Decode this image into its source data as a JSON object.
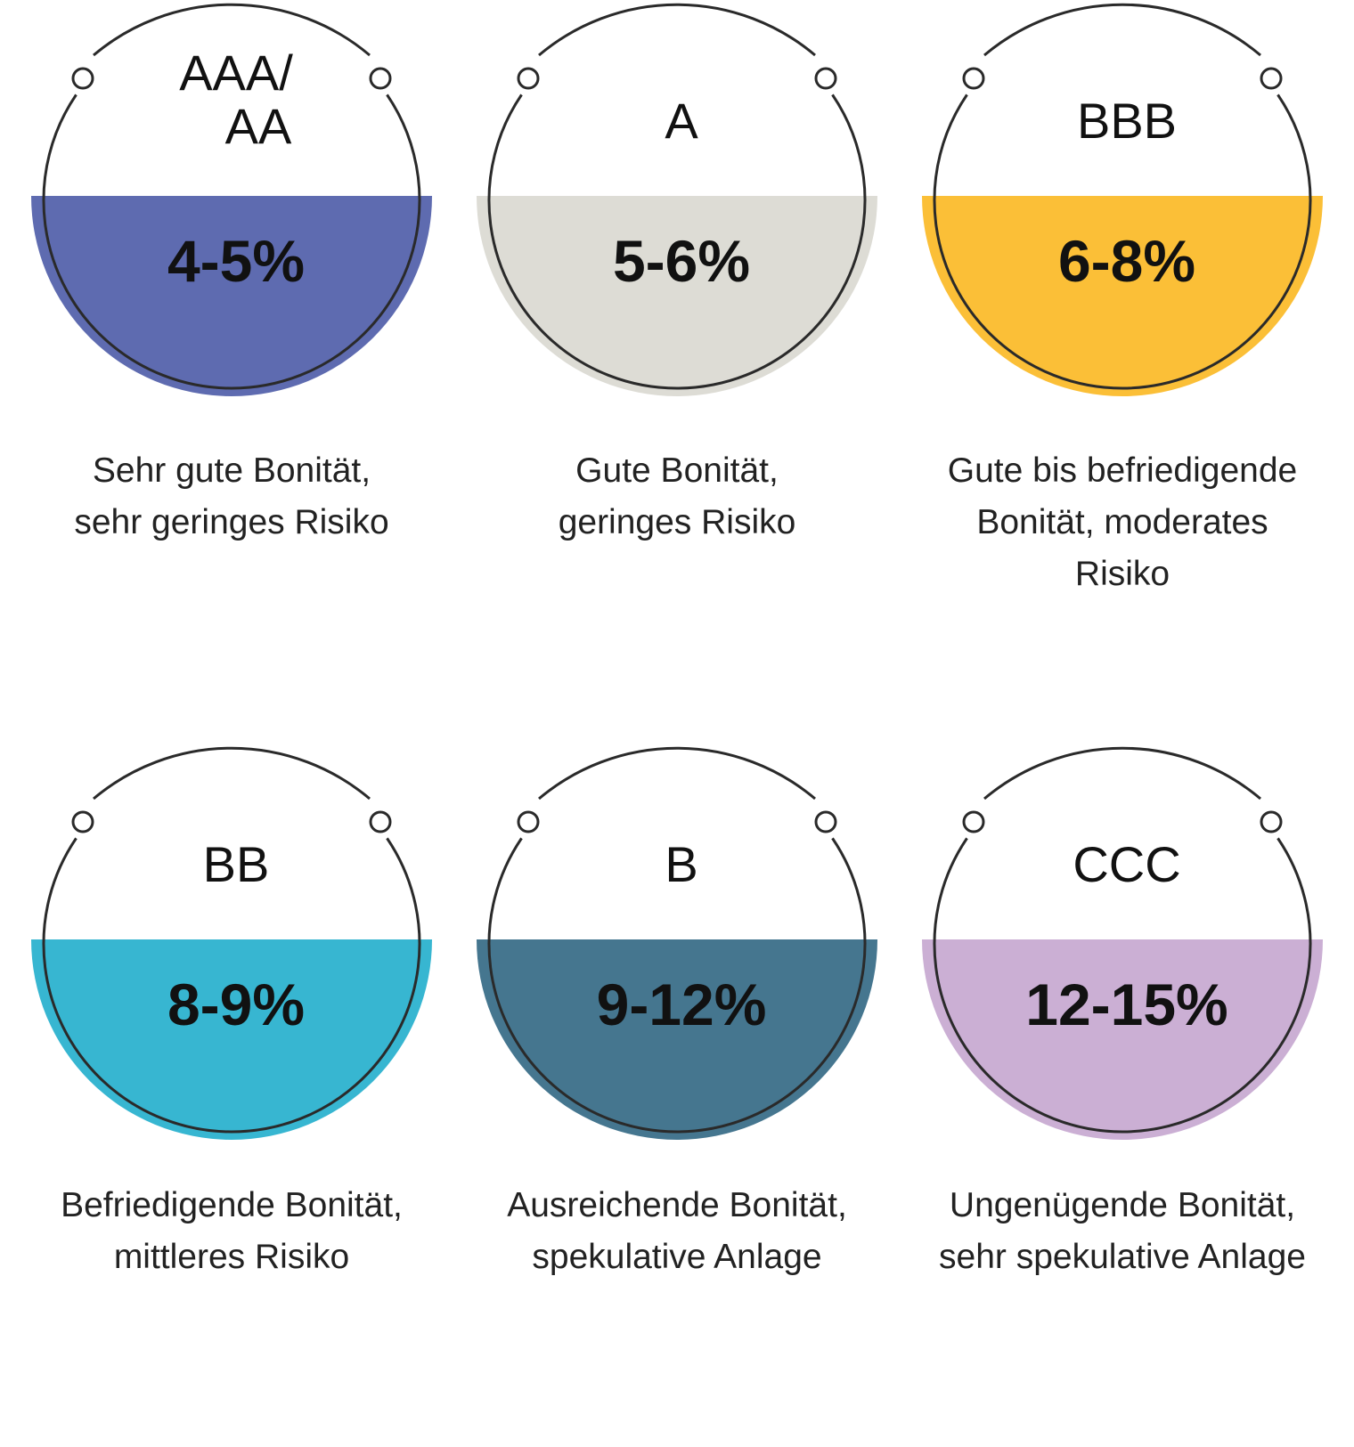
{
  "ratings": [
    {
      "rating_line1": "AAA/",
      "rating_line2": "AA",
      "yield": "4-5%",
      "desc_line1": "Sehr gute Bonität,",
      "desc_line2": "sehr geringes Risiko",
      "desc_line3": "",
      "color": "#5e6bb0"
    },
    {
      "rating_line1": "A",
      "rating_line2": "",
      "yield": "5-6%",
      "desc_line1": "Gute Bonität,",
      "desc_line2": "geringes Risiko",
      "desc_line3": "",
      "color": "#dddcd5"
    },
    {
      "rating_line1": "BBB",
      "rating_line2": "",
      "yield": "6-8%",
      "desc_line1": "Gute bis befriedigende",
      "desc_line2": "Bonität, moderates",
      "desc_line3": "Risiko",
      "color": "#fbbf37"
    },
    {
      "rating_line1": "BB",
      "rating_line2": "",
      "yield": "8-9%",
      "desc_line1": "Befriedigende Bonität,",
      "desc_line2": "mittleres Risiko",
      "desc_line3": "",
      "color": "#37b6d1"
    },
    {
      "rating_line1": "B",
      "rating_line2": "",
      "yield": "9-12%",
      "desc_line1": "Ausreichende Bonität,",
      "desc_line2": "spekulative Anlage",
      "desc_line3": "",
      "color": "#45768f"
    },
    {
      "rating_line1": "CCC",
      "rating_line2": "",
      "yield": "12-15%",
      "desc_line1": "Ungenügende Bonität,",
      "desc_line2": "sehr spekulative Anlage",
      "desc_line3": "",
      "color": "#cbafd4"
    }
  ]
}
